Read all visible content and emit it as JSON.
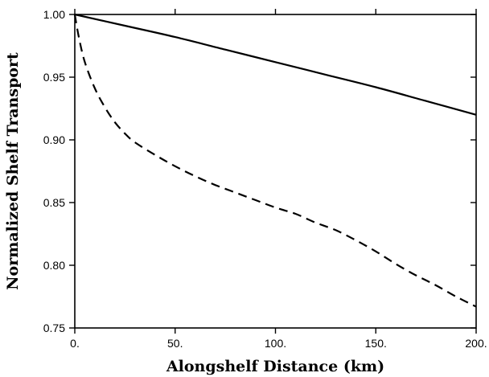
{
  "chart_data": {
    "type": "line",
    "title": "",
    "xlabel": "Alongshelf Distance (km)",
    "ylabel": "Normalized Shelf Transport",
    "xlim": [
      0,
      200
    ],
    "ylim": [
      0.75,
      1.0
    ],
    "x_ticks": [
      {
        "value": 0,
        "label": "0."
      },
      {
        "value": 50,
        "label": "50."
      },
      {
        "value": 100,
        "label": "100."
      },
      {
        "value": 150,
        "label": "150."
      },
      {
        "value": 200,
        "label": "200."
      }
    ],
    "y_ticks": [
      {
        "value": 0.75,
        "label": "0.75"
      },
      {
        "value": 0.8,
        "label": "0.80"
      },
      {
        "value": 0.85,
        "label": "0.85"
      },
      {
        "value": 0.9,
        "label": "0.90"
      },
      {
        "value": 0.95,
        "label": "0.95"
      },
      {
        "value": 1.0,
        "label": "1.00"
      }
    ],
    "grid": false,
    "legend": "none",
    "series": [
      {
        "style": "solid",
        "x": [
          0,
          25,
          50,
          75,
          100,
          125,
          150,
          175,
          200
        ],
        "y": [
          1.0,
          0.991,
          0.982,
          0.972,
          0.962,
          0.952,
          0.942,
          0.931,
          0.92
        ]
      },
      {
        "style": "dashed",
        "x": [
          0,
          2,
          5,
          10,
          15,
          20,
          25,
          30,
          40,
          50,
          60,
          70,
          80,
          90,
          100,
          110,
          120,
          130,
          140,
          150,
          160,
          170,
          180,
          190,
          200
        ],
        "y": [
          1.0,
          0.982,
          0.962,
          0.941,
          0.926,
          0.914,
          0.905,
          0.898,
          0.888,
          0.879,
          0.871,
          0.864,
          0.858,
          0.852,
          0.846,
          0.841,
          0.834,
          0.828,
          0.82,
          0.811,
          0.801,
          0.792,
          0.784,
          0.775,
          0.767
        ]
      }
    ]
  }
}
